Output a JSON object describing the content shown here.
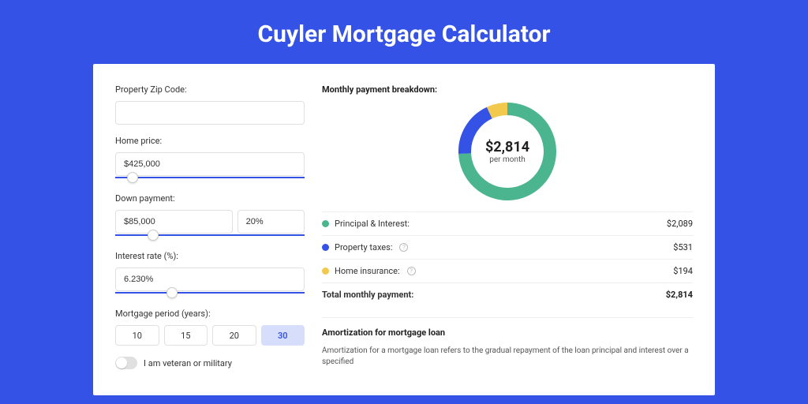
{
  "page": {
    "title": "Cuyler Mortgage Calculator",
    "background_color": "#3452e5",
    "card_background": "#ffffff"
  },
  "form": {
    "zip": {
      "label": "Property Zip Code:",
      "value": ""
    },
    "home_price": {
      "label": "Home price:",
      "value": "$425,000",
      "slider_percent": 9
    },
    "down_payment": {
      "label": "Down payment:",
      "amount": "$85,000",
      "percent": "20%",
      "slider_percent": 20
    },
    "interest": {
      "label": "Interest rate (%):",
      "value": "6.230%",
      "slider_percent": 30
    },
    "period": {
      "label": "Mortgage period (years):",
      "options": [
        "10",
        "15",
        "20",
        "30"
      ],
      "selected": "30"
    },
    "veteran": {
      "label": "I am veteran or military",
      "checked": false
    }
  },
  "breakdown": {
    "title": "Monthly payment breakdown:",
    "donut": {
      "center_amount": "$2,814",
      "center_sub": "per month",
      "slices": [
        {
          "label": "Principal & Interest:",
          "value": "$2,089",
          "amount": 2089,
          "color": "#4ab58e"
        },
        {
          "label": "Property taxes:",
          "value": "$531",
          "amount": 531,
          "color": "#3452e5",
          "info": true
        },
        {
          "label": "Home insurance:",
          "value": "$194",
          "amount": 194,
          "color": "#f2c94c",
          "info": true
        }
      ],
      "stroke_width": 16,
      "size": 124
    },
    "total": {
      "label": "Total monthly payment:",
      "value": "$2,814"
    }
  },
  "amortization": {
    "title": "Amortization for mortgage loan",
    "text": "Amortization for a mortgage loan refers to the gradual repayment of the loan principal and interest over a specified"
  }
}
